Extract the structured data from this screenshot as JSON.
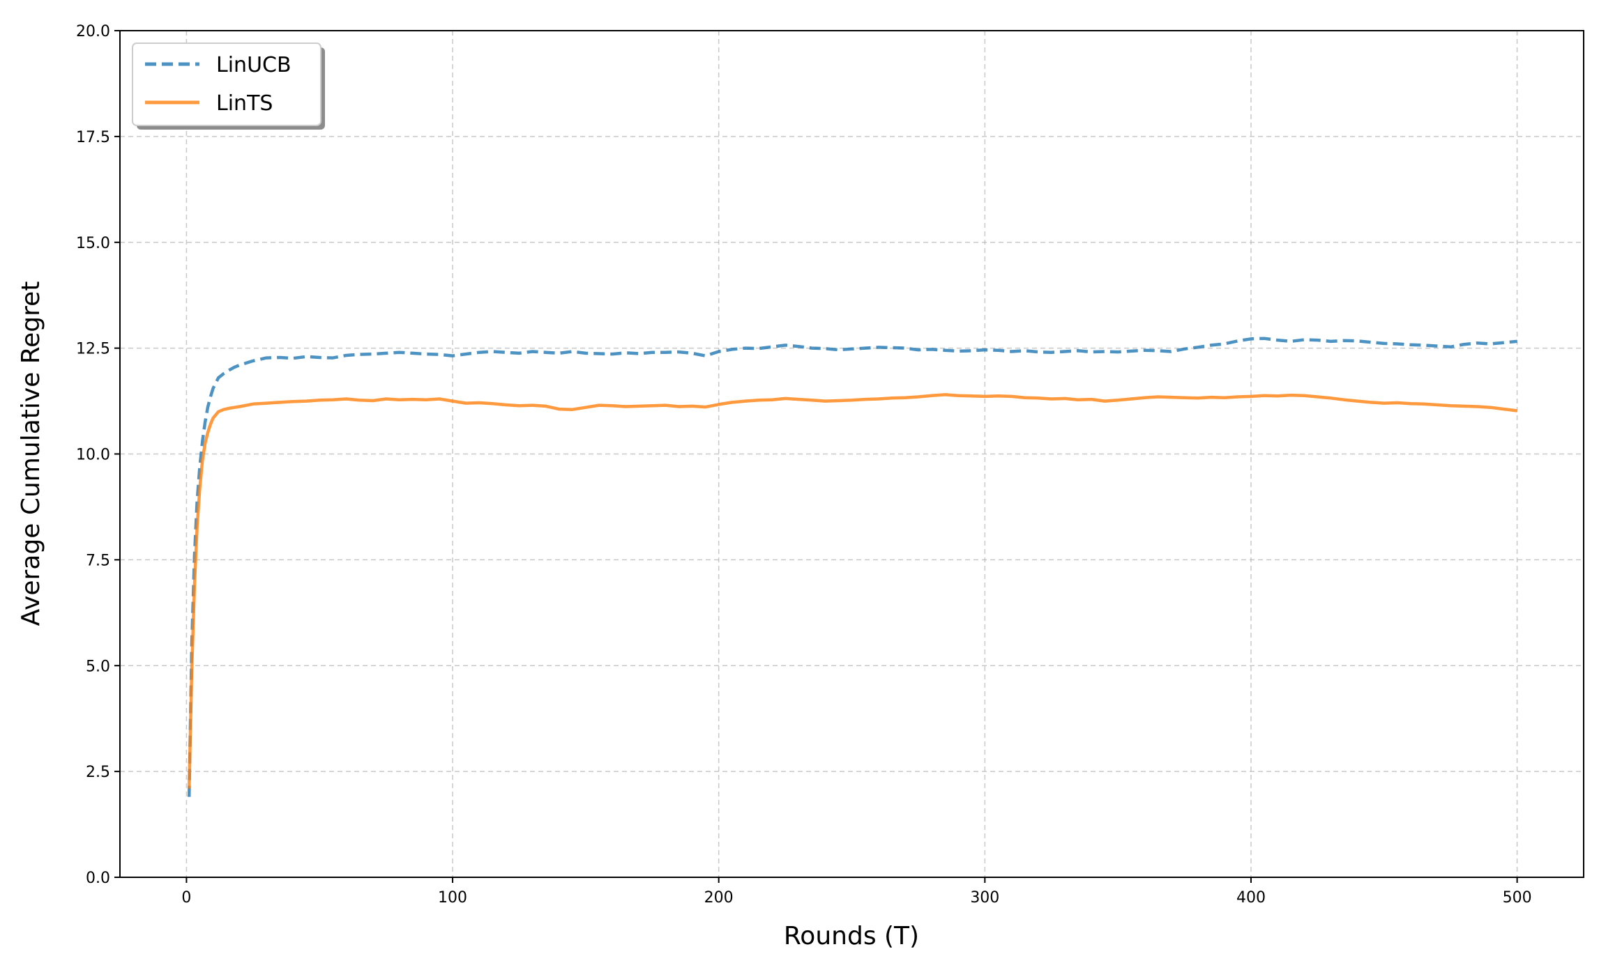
{
  "chart_data": {
    "type": "line",
    "title": "",
    "xlabel": "Rounds (T)",
    "ylabel": "Average Cumulative Regret",
    "xlim": [
      -25,
      525
    ],
    "ylim": [
      0,
      20
    ],
    "xticks": [
      0,
      100,
      200,
      300,
      400,
      500
    ],
    "yticks": [
      0.0,
      2.5,
      5.0,
      7.5,
      10.0,
      12.5,
      15.0,
      17.5,
      20.0
    ],
    "ytick_labels": [
      "0.0",
      "2.5",
      "5.0",
      "7.5",
      "10.0",
      "12.5",
      "15.0",
      "17.5",
      "20.0"
    ],
    "grid": true,
    "legend_position": "top-left",
    "series": [
      {
        "name": "LinUCB",
        "color": "#1f77b4",
        "style": "dashed",
        "x": [
          1,
          2,
          3,
          4,
          5,
          6,
          7,
          8,
          9,
          10,
          12,
          14,
          16,
          18,
          20,
          25,
          30,
          35,
          40,
          45,
          50,
          55,
          60,
          65,
          70,
          75,
          80,
          85,
          90,
          95,
          100,
          105,
          110,
          115,
          120,
          125,
          130,
          135,
          140,
          145,
          150,
          155,
          160,
          165,
          170,
          175,
          180,
          185,
          190,
          195,
          200,
          205,
          210,
          215,
          220,
          225,
          230,
          235,
          240,
          245,
          250,
          255,
          260,
          265,
          270,
          275,
          280,
          285,
          290,
          295,
          300,
          305,
          310,
          315,
          320,
          325,
          330,
          335,
          340,
          345,
          350,
          355,
          360,
          365,
          370,
          375,
          380,
          385,
          390,
          395,
          400,
          405,
          410,
          415,
          420,
          425,
          430,
          435,
          440,
          445,
          450,
          455,
          460,
          465,
          470,
          475,
          480,
          485,
          490,
          495,
          500
        ],
        "y": [
          1.9,
          5.5,
          7.6,
          8.9,
          9.7,
          10.3,
          10.75,
          11.1,
          11.35,
          11.55,
          11.8,
          11.9,
          11.98,
          12.05,
          12.1,
          12.2,
          12.27,
          12.28,
          12.26,
          12.3,
          12.28,
          12.27,
          12.33,
          12.35,
          12.36,
          12.38,
          12.4,
          12.38,
          12.36,
          12.35,
          12.32,
          12.36,
          12.4,
          12.42,
          12.4,
          12.38,
          12.42,
          12.4,
          12.38,
          12.42,
          12.38,
          12.37,
          12.36,
          12.39,
          12.37,
          12.4,
          12.4,
          12.41,
          12.38,
          12.32,
          12.42,
          12.47,
          12.5,
          12.49,
          12.53,
          12.57,
          12.54,
          12.5,
          12.49,
          12.46,
          12.48,
          12.5,
          12.52,
          12.51,
          12.5,
          12.46,
          12.47,
          12.45,
          12.43,
          12.44,
          12.46,
          12.45,
          12.42,
          12.44,
          12.41,
          12.4,
          12.42,
          12.44,
          12.41,
          12.42,
          12.41,
          12.43,
          12.45,
          12.44,
          12.42,
          12.48,
          12.52,
          12.57,
          12.6,
          12.67,
          12.72,
          12.73,
          12.69,
          12.66,
          12.7,
          12.69,
          12.66,
          12.68,
          12.67,
          12.64,
          12.61,
          12.6,
          12.58,
          12.57,
          12.55,
          12.53,
          12.59,
          12.62,
          12.6,
          12.63,
          12.66
        ]
      },
      {
        "name": "LinTS",
        "color": "#ff7f0e",
        "style": "solid",
        "x": [
          1,
          2,
          3,
          4,
          5,
          6,
          7,
          8,
          9,
          10,
          12,
          14,
          16,
          18,
          20,
          25,
          30,
          35,
          40,
          45,
          50,
          55,
          60,
          65,
          70,
          75,
          80,
          85,
          90,
          95,
          100,
          105,
          110,
          115,
          120,
          125,
          130,
          135,
          140,
          145,
          150,
          155,
          160,
          165,
          170,
          175,
          180,
          185,
          190,
          195,
          200,
          205,
          210,
          215,
          220,
          225,
          230,
          235,
          240,
          245,
          250,
          255,
          260,
          265,
          270,
          275,
          280,
          285,
          290,
          295,
          300,
          305,
          310,
          315,
          320,
          325,
          330,
          335,
          340,
          345,
          350,
          355,
          360,
          365,
          370,
          375,
          380,
          385,
          390,
          395,
          400,
          405,
          410,
          415,
          420,
          425,
          430,
          435,
          440,
          445,
          450,
          455,
          460,
          465,
          470,
          475,
          480,
          485,
          490,
          495,
          500
        ],
        "y": [
          2.1,
          4.9,
          6.9,
          8.3,
          9.2,
          9.85,
          10.25,
          10.5,
          10.7,
          10.85,
          11.0,
          11.05,
          11.08,
          11.1,
          11.12,
          11.18,
          11.2,
          11.22,
          11.24,
          11.25,
          11.27,
          11.28,
          11.3,
          11.27,
          11.26,
          11.3,
          11.28,
          11.29,
          11.28,
          11.3,
          11.25,
          11.2,
          11.21,
          11.19,
          11.16,
          11.14,
          11.15,
          11.13,
          11.06,
          11.05,
          11.1,
          11.15,
          11.14,
          11.12,
          11.13,
          11.14,
          11.15,
          11.12,
          11.13,
          11.11,
          11.17,
          11.22,
          11.25,
          11.27,
          11.28,
          11.31,
          11.29,
          11.27,
          11.25,
          11.26,
          11.27,
          11.29,
          11.3,
          11.32,
          11.33,
          11.35,
          11.38,
          11.4,
          11.38,
          11.37,
          11.36,
          11.37,
          11.36,
          11.33,
          11.32,
          11.3,
          11.31,
          11.28,
          11.29,
          11.25,
          11.27,
          11.3,
          11.33,
          11.35,
          11.34,
          11.33,
          11.32,
          11.34,
          11.33,
          11.35,
          11.36,
          11.38,
          11.37,
          11.39,
          11.38,
          11.35,
          11.32,
          11.28,
          11.25,
          11.22,
          11.2,
          11.21,
          11.19,
          11.18,
          11.16,
          11.14,
          11.13,
          11.12,
          11.1,
          11.06,
          11.02
        ]
      }
    ]
  }
}
